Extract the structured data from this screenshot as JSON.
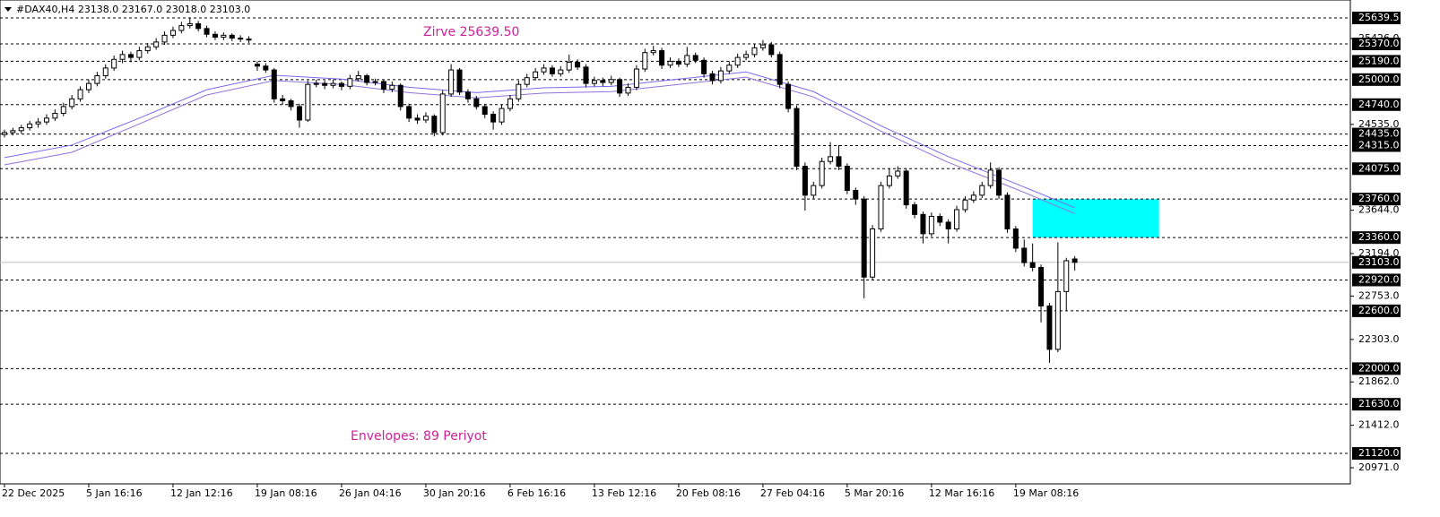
{
  "chart_data": {
    "type": "candlestick",
    "title": "#DAX40,H4  23138.0 23167.0 23018.0 23103.0",
    "categories": [
      "22 Dec 2025",
      null,
      null,
      null,
      null,
      null,
      null,
      null,
      null,
      null,
      "5 Jan 16:16",
      null,
      null,
      null,
      null,
      null,
      null,
      null,
      null,
      null,
      "12 Jan 12:16",
      null,
      null,
      null,
      null,
      null,
      null,
      null,
      null,
      null,
      "19 Jan 08:16",
      null,
      null,
      null,
      null,
      null,
      null,
      null,
      null,
      null,
      "26 Jan 04:16",
      null,
      null,
      null,
      null,
      null,
      null,
      null,
      null,
      null,
      "30 Jan 20:16",
      null,
      null,
      null,
      null,
      null,
      null,
      null,
      null,
      null,
      "6 Feb 16:16",
      null,
      null,
      null,
      null,
      null,
      null,
      null,
      null,
      null,
      "13 Feb 12:16",
      null,
      null,
      null,
      null,
      null,
      null,
      null,
      null,
      null,
      "20 Feb 08:16",
      null,
      null,
      null,
      null,
      null,
      null,
      null,
      null,
      null,
      "27 Feb 04:16",
      null,
      null,
      null,
      null,
      null,
      null,
      null,
      null,
      null,
      "5 Mar 20:16",
      null,
      null,
      null,
      null,
      null,
      null,
      null,
      null,
      null,
      "12 Mar 16:16",
      null,
      null,
      null,
      null,
      null,
      null,
      null,
      null,
      null,
      "19 Mar 08:16",
      null,
      null,
      null,
      null,
      null,
      null,
      null
    ],
    "ohlc": [
      [
        24430,
        24480,
        24400,
        24450
      ],
      [
        24450,
        24500,
        24420,
        24470
      ],
      [
        24470,
        24530,
        24440,
        24500
      ],
      [
        24500,
        24570,
        24470,
        24540
      ],
      [
        24540,
        24600,
        24500,
        24560
      ],
      [
        24560,
        24640,
        24530,
        24600
      ],
      [
        24600,
        24690,
        24570,
        24650
      ],
      [
        24650,
        24760,
        24620,
        24720
      ],
      [
        24720,
        24840,
        24690,
        24800
      ],
      [
        24800,
        24930,
        24770,
        24895
      ],
      [
        24895,
        25000,
        24860,
        24960
      ],
      [
        24960,
        25080,
        24930,
        25040
      ],
      [
        25040,
        25160,
        25010,
        25120
      ],
      [
        25120,
        25250,
        25090,
        25210
      ],
      [
        25210,
        25300,
        25170,
        25260
      ],
      [
        25260,
        25290,
        25180,
        25230
      ],
      [
        25230,
        25340,
        25200,
        25300
      ],
      [
        25300,
        25380,
        25270,
        25340
      ],
      [
        25340,
        25430,
        25310,
        25390
      ],
      [
        25390,
        25500,
        25360,
        25460
      ],
      [
        25460,
        25550,
        25430,
        25510
      ],
      [
        25510,
        25600,
        25480,
        25560
      ],
      [
        25560,
        25639.5,
        25530,
        25580
      ],
      [
        25580,
        25610,
        25500,
        25530
      ],
      [
        25530,
        25560,
        25440,
        25470
      ],
      [
        25470,
        25500,
        25410,
        25440
      ],
      [
        25440,
        25490,
        25410,
        25460
      ],
      [
        25460,
        25480,
        25400,
        25430
      ],
      [
        25430,
        25460,
        25390,
        25420
      ],
      [
        25420,
        25450,
        25380,
        25420
      ],
      [
        25160,
        25190,
        25090,
        25140
      ],
      [
        25140,
        25170,
        25070,
        25100
      ],
      [
        25100,
        25120,
        24760,
        24800
      ],
      [
        24800,
        24840,
        24740,
        24780
      ],
      [
        24780,
        24800,
        24680,
        24720
      ],
      [
        24720,
        24750,
        24500,
        24580
      ],
      [
        24580,
        24990,
        24560,
        24950
      ],
      [
        24950,
        25000,
        24920,
        24960
      ],
      [
        24960,
        24990,
        24900,
        24940
      ],
      [
        24940,
        25000,
        24910,
        24960
      ],
      [
        24960,
        24980,
        24890,
        24930
      ],
      [
        24930,
        25050,
        24900,
        25010
      ],
      [
        25010,
        25090,
        24980,
        25040
      ],
      [
        25040,
        25060,
        24940,
        24970
      ],
      [
        24970,
        25010,
        24940,
        24980
      ],
      [
        24980,
        25000,
        24860,
        24900
      ],
      [
        24900,
        24980,
        24870,
        24940
      ],
      [
        24940,
        24960,
        24680,
        24720
      ],
      [
        24720,
        24750,
        24560,
        24600
      ],
      [
        24600,
        24640,
        24540,
        24580
      ],
      [
        24580,
        24660,
        24550,
        24620
      ],
      [
        24620,
        24640,
        24410,
        24450
      ],
      [
        24450,
        24890,
        24420,
        24850
      ],
      [
        24850,
        25160,
        24820,
        25100
      ],
      [
        25100,
        25120,
        24840,
        24870
      ],
      [
        24870,
        24900,
        24760,
        24800
      ],
      [
        24800,
        24830,
        24690,
        24720
      ],
      [
        24720,
        24750,
        24600,
        24640
      ],
      [
        24640,
        24670,
        24480,
        24560
      ],
      [
        24560,
        24740,
        24530,
        24700
      ],
      [
        24700,
        24840,
        24670,
        24800
      ],
      [
        24800,
        24990,
        24770,
        24950
      ],
      [
        24950,
        25060,
        24920,
        25020
      ],
      [
        25020,
        25120,
        24990,
        25080
      ],
      [
        25080,
        25160,
        25050,
        25120
      ],
      [
        25120,
        25150,
        25030,
        25060
      ],
      [
        25060,
        25140,
        25030,
        25100
      ],
      [
        25100,
        25260,
        25070,
        25180
      ],
      [
        25180,
        25210,
        25100,
        25130
      ],
      [
        25130,
        25160,
        24920,
        24960
      ],
      [
        24960,
        25030,
        24930,
        24990
      ],
      [
        24990,
        25020,
        24930,
        24970
      ],
      [
        24970,
        25040,
        24940,
        25000
      ],
      [
        25000,
        25020,
        24820,
        24860
      ],
      [
        24860,
        24960,
        24830,
        24920
      ],
      [
        24920,
        25150,
        24890,
        25110
      ],
      [
        25110,
        25320,
        25080,
        25280
      ],
      [
        25280,
        25350,
        25250,
        25300
      ],
      [
        25300,
        25330,
        25110,
        25150
      ],
      [
        25150,
        25230,
        25120,
        25190
      ],
      [
        25190,
        25220,
        25130,
        25160
      ],
      [
        25160,
        25340,
        25130,
        25250
      ],
      [
        25250,
        25280,
        25170,
        25200
      ],
      [
        25200,
        25230,
        25020,
        25060
      ],
      [
        25060,
        25090,
        24950,
        24990
      ],
      [
        24990,
        25130,
        24960,
        25090
      ],
      [
        25090,
        25190,
        25060,
        25150
      ],
      [
        25150,
        25270,
        25120,
        25230
      ],
      [
        25230,
        25300,
        25200,
        25260
      ],
      [
        25260,
        25370,
        25230,
        25330
      ],
      [
        25330,
        25410,
        25300,
        25360
      ],
      [
        25360,
        25390,
        25230,
        25260
      ],
      [
        25260,
        25290,
        24910,
        24950
      ],
      [
        24950,
        24980,
        24660,
        24700
      ],
      [
        24700,
        24730,
        24060,
        24100
      ],
      [
        24100,
        24140,
        23640,
        23800
      ],
      [
        23800,
        23940,
        23760,
        23900
      ],
      [
        23900,
        24190,
        23870,
        24150
      ],
      [
        24150,
        24350,
        24120,
        24200
      ],
      [
        24200,
        24320,
        24060,
        24100
      ],
      [
        24100,
        24130,
        23810,
        23850
      ],
      [
        23850,
        23880,
        23700,
        23760
      ],
      [
        23760,
        23790,
        22730,
        22950
      ],
      [
        22950,
        23490,
        22920,
        23450
      ],
      [
        23450,
        23940,
        23420,
        23900
      ],
      [
        23900,
        24080,
        23870,
        24000
      ],
      [
        24000,
        24100,
        23970,
        24050
      ],
      [
        24050,
        24080,
        23660,
        23700
      ],
      [
        23700,
        23730,
        23560,
        23600
      ],
      [
        23600,
        23630,
        23300,
        23400
      ],
      [
        23400,
        23620,
        23370,
        23580
      ],
      [
        23580,
        23610,
        23480,
        23520
      ],
      [
        23520,
        23550,
        23300,
        23450
      ],
      [
        23450,
        23690,
        23420,
        23650
      ],
      [
        23650,
        23790,
        23620,
        23750
      ],
      [
        23750,
        23840,
        23720,
        23800
      ],
      [
        23800,
        23940,
        23770,
        23900
      ],
      [
        23900,
        24140,
        23870,
        24060
      ],
      [
        24060,
        24090,
        23760,
        23800
      ],
      [
        23800,
        23830,
        23410,
        23450
      ],
      [
        23450,
        23480,
        23210,
        23250
      ],
      [
        23250,
        23340,
        23060,
        23100
      ],
      [
        23100,
        23300,
        23010,
        23050
      ],
      [
        23050,
        23080,
        22480,
        22650
      ],
      [
        22650,
        22680,
        22060,
        22200
      ],
      [
        22200,
        23310,
        22170,
        22800
      ],
      [
        22800,
        23150,
        22600,
        23120
      ],
      [
        23138,
        23167,
        23018,
        23103
      ]
    ],
    "up_color": "#ffffff",
    "down_color": "#000000",
    "envelopes": {
      "x": [
        0,
        8,
        16,
        24,
        32,
        40,
        48,
        56,
        64,
        72,
        80,
        88,
        96,
        104,
        112,
        120,
        127
      ],
      "series": [
        {
          "color": "#7b68ee",
          "values": [
            24190,
            24320,
            24600,
            24895,
            25045,
            25005,
            24920,
            24865,
            24915,
            24930,
            25005,
            25080,
            24875,
            24520,
            24200,
            23920,
            23670
          ]
        },
        {
          "color": "#9370db",
          "values": [
            24115,
            24245,
            24540,
            24840,
            24990,
            24950,
            24865,
            24810,
            24860,
            24875,
            24950,
            25025,
            24820,
            24465,
            24140,
            23865,
            23610
          ]
        }
      ]
    },
    "zone": {
      "x": [
        122,
        137
      ],
      "y": [
        23360,
        23760
      ],
      "color": "#00ffff"
    },
    "annotations": [
      "Zirve 25639.50",
      "Envelopes: 89 Periyot"
    ],
    "annotation_color": "#cc2299",
    "xlim": [
      -0.53,
      159.7
    ],
    "ylim": [
      20804,
      25826
    ],
    "yticks": [
      {
        "value": 25426,
        "label": "25426.0"
      },
      {
        "value": 24535,
        "label": "24535.0"
      },
      {
        "value": 23644,
        "label": "23644.0"
      },
      {
        "value": 23194,
        "label": "23194.0"
      },
      {
        "value": 22753,
        "label": "22753.0"
      },
      {
        "value": 22303,
        "label": "22303.0"
      },
      {
        "value": 21862,
        "label": "21862.0"
      },
      {
        "value": 21412,
        "label": "21412.0"
      },
      {
        "value": 20971,
        "label": "20971.0"
      }
    ],
    "levels": [
      25639.5,
      {
        "value": 25370,
        "label": "25370.0"
      },
      {
        "value": 25190,
        "label": "25190.0"
      },
      {
        "value": 25000,
        "label": "25000.0"
      },
      {
        "value": 24740,
        "label": "24740.0"
      },
      {
        "value": 24435,
        "label": "24435.0"
      },
      {
        "value": 24315,
        "label": "24315.0"
      },
      {
        "value": 24075,
        "label": "24075.0"
      },
      {
        "value": 23760,
        "label": "23760.0"
      },
      {
        "value": 23360,
        "label": "23360.0"
      },
      {
        "value": 22920,
        "label": "22920.0"
      },
      {
        "value": 22600,
        "label": "22600.0"
      },
      {
        "value": 22000,
        "label": "22000.0"
      },
      {
        "value": 21630,
        "label": "21630.0"
      },
      {
        "value": 21120,
        "label": "21120.0"
      }
    ],
    "last_price": {
      "value": 23103,
      "label": "23103.0"
    }
  }
}
